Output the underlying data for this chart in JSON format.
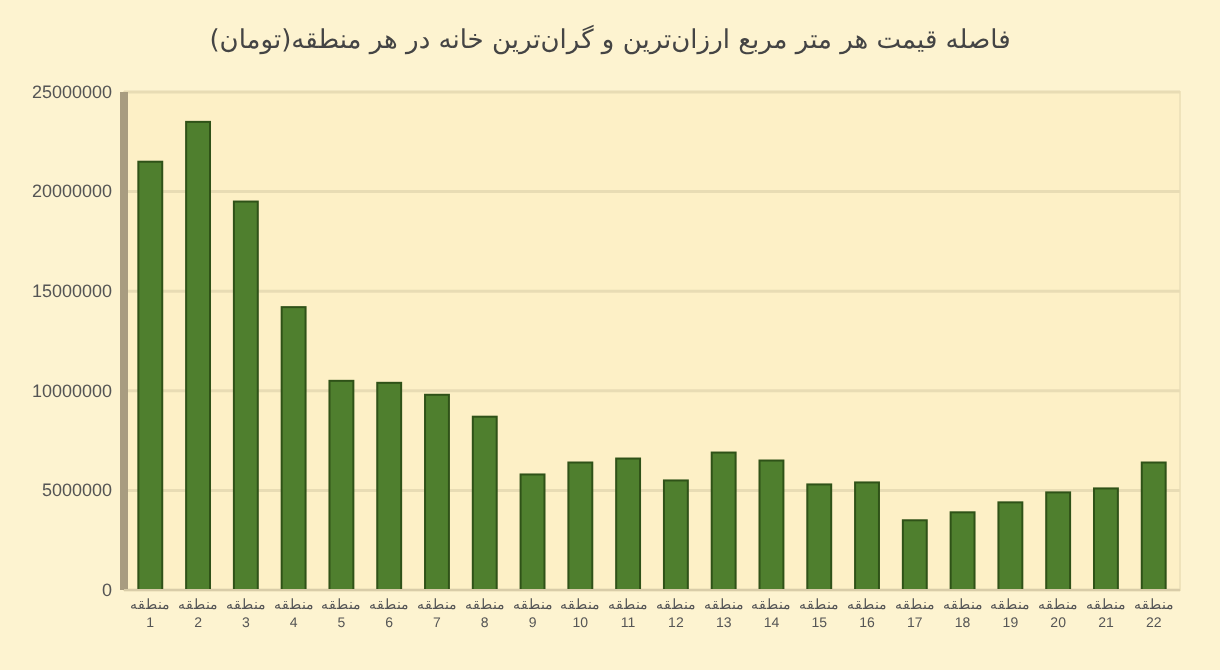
{
  "chart_data": {
    "type": "bar",
    "title": "فاصله قیمت هر متر مربع ارزان‌ترین و گران‌ترین خانه در هر منطقه(تومان)",
    "categories": [
      "منطقه 1",
      "منطقه 2",
      "منطقه 3",
      "منطقه 4",
      "منطقه 5",
      "منطقه 6",
      "منطقه 7",
      "منطقه 8",
      "منطقه 9",
      "منطقه 10",
      "منطقه 11",
      "منطقه 12",
      "منطقه 13",
      "منطقه 14",
      "منطقه 15",
      "منطقه 16",
      "منطقه 17",
      "منطقه 18",
      "منطقه 19",
      "منطقه 20",
      "منطقه 21",
      "منطقه 22"
    ],
    "values": [
      21500000,
      23500000,
      19500000,
      14200000,
      10500000,
      10400000,
      9800000,
      8700000,
      5800000,
      6400000,
      6600000,
      5500000,
      6900000,
      6500000,
      5300000,
      5400000,
      3500000,
      3900000,
      4400000,
      4900000,
      5100000,
      6400000
    ],
    "color": "#4f7f2e",
    "ylim": [
      0,
      25000000
    ],
    "yticks": [
      0,
      5000000,
      10000000,
      15000000,
      20000000,
      25000000
    ],
    "grid": "y"
  }
}
